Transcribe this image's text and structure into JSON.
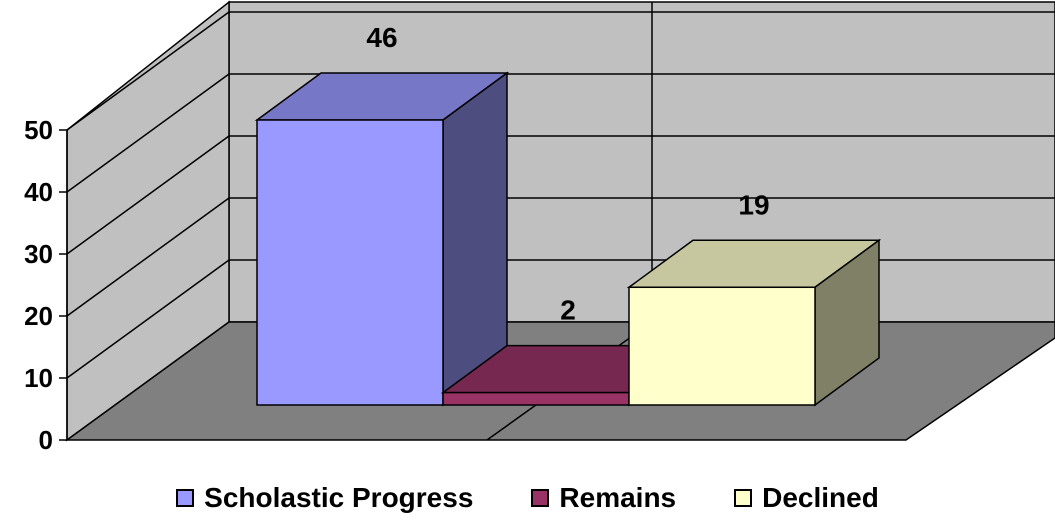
{
  "chart_data": {
    "type": "bar",
    "title": "",
    "xlabel": "",
    "ylabel": "",
    "ylim": [
      0,
      50
    ],
    "yticks": [
      0,
      10,
      20,
      30,
      40,
      50
    ],
    "grid": true,
    "three_d": true,
    "legend_position": "bottom",
    "categories": [
      "Scholastic Progress",
      "Remains",
      "Declined"
    ],
    "values": [
      46,
      2,
      19
    ],
    "colors": [
      "#9999FF",
      "#993366",
      "#FFFFCC"
    ]
  },
  "legend": {
    "items": [
      {
        "label": "Scholastic Progress",
        "color": "#9999FF"
      },
      {
        "label": "Remains",
        "color": "#993366"
      },
      {
        "label": "Declined",
        "color": "#FFFFCC"
      }
    ]
  }
}
